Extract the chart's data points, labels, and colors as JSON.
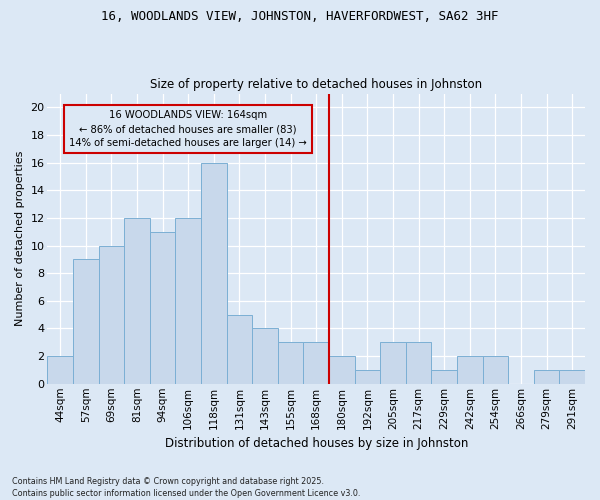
{
  "title": "16, WOODLANDS VIEW, JOHNSTON, HAVERFORDWEST, SA62 3HF",
  "subtitle": "Size of property relative to detached houses in Johnston",
  "xlabel": "Distribution of detached houses by size in Johnston",
  "ylabel": "Number of detached properties",
  "categories": [
    "44sqm",
    "57sqm",
    "69sqm",
    "81sqm",
    "94sqm",
    "106sqm",
    "118sqm",
    "131sqm",
    "143sqm",
    "155sqm",
    "168sqm",
    "180sqm",
    "192sqm",
    "205sqm",
    "217sqm",
    "229sqm",
    "242sqm",
    "254sqm",
    "266sqm",
    "279sqm",
    "291sqm"
  ],
  "values": [
    2,
    9,
    10,
    12,
    11,
    12,
    16,
    5,
    4,
    3,
    3,
    2,
    1,
    3,
    3,
    1,
    2,
    2,
    0,
    1,
    1
  ],
  "bar_color": "#c8d8eb",
  "bar_edge_color": "#7bafd4",
  "reference_line_color": "#cc0000",
  "annotation_text": "16 WOODLANDS VIEW: 164sqm\n← 86% of detached houses are smaller (83)\n14% of semi-detached houses are larger (14) →",
  "annotation_box_color": "#cc0000",
  "ylim": [
    0,
    21
  ],
  "yticks": [
    0,
    2,
    4,
    6,
    8,
    10,
    12,
    14,
    16,
    18,
    20
  ],
  "background_color": "#dce8f5",
  "grid_color": "#ffffff",
  "footer": "Contains HM Land Registry data © Crown copyright and database right 2025.\nContains public sector information licensed under the Open Government Licence v3.0."
}
